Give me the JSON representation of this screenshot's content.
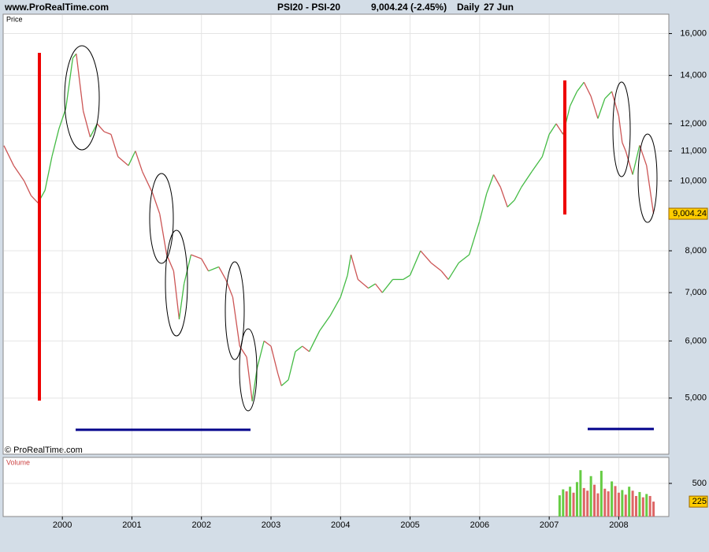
{
  "header": {
    "site": "www.ProRealTime.com",
    "instrument": "PSI20 - PSI-20",
    "quote": "9,004.24 (-2.45%)",
    "period": "Daily",
    "date": "27 Jun",
    "copyright": "© ProRealTime.com"
  },
  "chart_data": [
    {
      "type": "line",
      "y_label": "Price",
      "log_scale": true,
      "grid": true,
      "x": [
        1999.16,
        1999.3,
        1999.45,
        1999.55,
        1999.65,
        1999.75,
        1999.85,
        1999.95,
        2000.05,
        2000.15,
        2000.2,
        2000.3,
        2000.4,
        2000.5,
        2000.6,
        2000.7,
        2000.8,
        2000.95,
        2001.05,
        2001.15,
        2001.3,
        2001.4,
        2001.5,
        2001.6,
        2001.68,
        2001.75,
        2001.85,
        2002.0,
        2002.1,
        2002.25,
        2002.35,
        2002.45,
        2002.55,
        2002.65,
        2002.73,
        2002.8,
        2002.9,
        2003.0,
        2003.1,
        2003.15,
        2003.25,
        2003.35,
        2003.45,
        2003.55,
        2003.7,
        2003.85,
        2004.0,
        2004.1,
        2004.15,
        2004.25,
        2004.4,
        2004.5,
        2004.6,
        2004.75,
        2004.9,
        2005.0,
        2005.15,
        2005.3,
        2005.45,
        2005.55,
        2005.7,
        2005.85,
        2006.0,
        2006.1,
        2006.2,
        2006.3,
        2006.4,
        2006.5,
        2006.6,
        2006.75,
        2006.9,
        2007.0,
        2007.1,
        2007.2,
        2007.3,
        2007.4,
        2007.5,
        2007.6,
        2007.7,
        2007.8,
        2007.9,
        2008.0,
        2008.05,
        2008.1,
        2008.2,
        2008.3,
        2008.4,
        2008.5
      ],
      "series": [
        {
          "name": "PSI20",
          "color": "#44bb44",
          "down_color": "#cc5555",
          "values": [
            11190,
            10500,
            10000,
            9540,
            9320,
            9700,
            10800,
            11800,
            12600,
            14800,
            15000,
            12500,
            11500,
            12000,
            11700,
            11600,
            10800,
            10500,
            11000,
            10300,
            9600,
            9000,
            7900,
            7500,
            6430,
            7200,
            7900,
            7800,
            7500,
            7600,
            7300,
            6900,
            5900,
            5700,
            4950,
            5500,
            6000,
            5900,
            5400,
            5200,
            5300,
            5800,
            5900,
            5800,
            6200,
            6500,
            6900,
            7400,
            7900,
            7300,
            7100,
            7200,
            7000,
            7300,
            7300,
            7400,
            8000,
            7700,
            7500,
            7300,
            7700,
            7900,
            8800,
            9600,
            10200,
            9800,
            9200,
            9400,
            9800,
            10300,
            10800,
            11600,
            12000,
            11600,
            12700,
            13300,
            13700,
            13100,
            12200,
            13000,
            13300,
            12300,
            11300,
            11000,
            10200,
            11200,
            10500,
            9004.24
          ]
        }
      ],
      "last_label": {
        "value": 9004.24,
        "label": "9,004.24"
      },
      "xlim": [
        1999.16,
        2008.72
      ],
      "xticks": [
        2000,
        2001,
        2002,
        2003,
        2004,
        2005,
        2006,
        2007,
        2008
      ],
      "ylim": [
        4180,
        17020
      ],
      "yticks": [
        {
          "value": 5000,
          "label": "5,000"
        },
        {
          "value": 6000,
          "label": "6,000"
        },
        {
          "value": 7000,
          "label": "7,000"
        },
        {
          "value": 8000,
          "label": "8,000"
        },
        {
          "value": 10000,
          "label": "10,000"
        },
        {
          "value": 11000,
          "label": "11,000"
        },
        {
          "value": 12000,
          "label": "12,000"
        },
        {
          "value": 14000,
          "label": "14,000"
        },
        {
          "value": 16000,
          "label": "16,000"
        }
      ]
    },
    {
      "type": "bar",
      "y_label": "Volume",
      "grid": true,
      "x": [
        2007.15,
        2007.2,
        2007.25,
        2007.3,
        2007.35,
        2007.4,
        2007.45,
        2007.5,
        2007.55,
        2007.6,
        2007.65,
        2007.7,
        2007.75,
        2007.8,
        2007.85,
        2007.9,
        2007.95,
        2008.0,
        2008.05,
        2008.1,
        2008.15,
        2008.2,
        2008.25,
        2008.3,
        2008.35,
        2008.4,
        2008.45,
        2008.5
      ],
      "series": [
        {
          "name": "Volume",
          "color": "#66cc44",
          "down_color": "#dd6666",
          "values": [
            320,
            410,
            380,
            450,
            360,
            520,
            700,
            430,
            390,
            610,
            480,
            350,
            690,
            420,
            380,
            530,
            460,
            360,
            400,
            330,
            450,
            390,
            310,
            370,
            290,
            340,
            310,
            225
          ]
        }
      ],
      "last_label": 225,
      "xlim": [
        1999.16,
        2008.72
      ],
      "ylim": [
        0,
        893
      ],
      "yticks": [
        500
      ]
    }
  ]
}
